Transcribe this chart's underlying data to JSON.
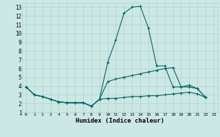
{
  "title": "",
  "xlabel": "Humidex (Indice chaleur)",
  "background_color": "#cce8e4",
  "grid_color": "#b0d4d0",
  "line_color": "#006060",
  "xlim": [
    -0.5,
    23.5
  ],
  "ylim": [
    1,
    13.5
  ],
  "xticks": [
    0,
    1,
    2,
    3,
    4,
    5,
    6,
    7,
    8,
    9,
    10,
    11,
    12,
    13,
    14,
    15,
    16,
    17,
    18,
    19,
    20,
    21,
    22,
    23
  ],
  "yticks": [
    1,
    2,
    3,
    4,
    5,
    6,
    7,
    8,
    9,
    10,
    11,
    12,
    13
  ],
  "series": [
    [
      3.9,
      3.0,
      2.8,
      2.5,
      2.2,
      2.1,
      2.1,
      2.1,
      1.7,
      2.5,
      6.7,
      9.3,
      12.3,
      13.0,
      13.1,
      10.6,
      6.3,
      6.3,
      3.9,
      3.9,
      4.1,
      3.7,
      2.7
    ],
    [
      3.9,
      3.0,
      2.8,
      2.5,
      2.2,
      2.1,
      2.1,
      2.1,
      1.7,
      2.5,
      4.5,
      4.8,
      5.0,
      5.2,
      5.4,
      5.6,
      5.8,
      6.0,
      6.1,
      3.9,
      3.9,
      3.7,
      2.7
    ],
    [
      3.9,
      3.0,
      2.8,
      2.5,
      2.2,
      2.1,
      2.1,
      2.1,
      1.7,
      2.5,
      2.6,
      2.6,
      2.7,
      2.8,
      2.8,
      2.9,
      2.9,
      3.0,
      3.1,
      3.2,
      3.3,
      3.1,
      2.7
    ]
  ],
  "x_values": [
    0,
    1,
    2,
    3,
    4,
    5,
    6,
    7,
    8,
    9,
    10,
    11,
    12,
    13,
    14,
    15,
    16,
    17,
    18,
    19,
    20,
    21,
    22
  ]
}
